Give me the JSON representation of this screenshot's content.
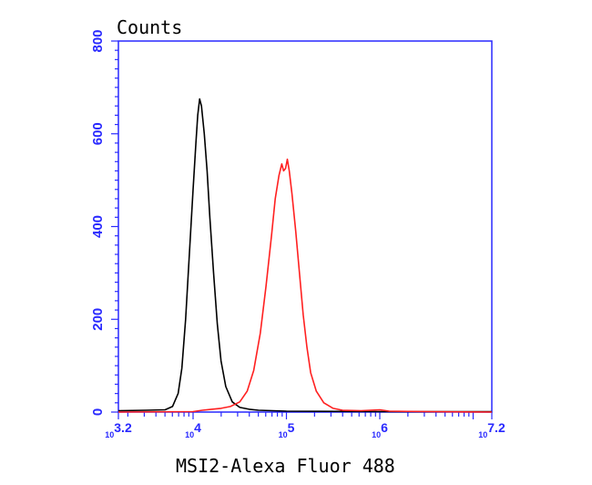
{
  "chart_data": {
    "type": "line",
    "ylabel": "Counts",
    "xlabel": "MSI2-Alexa Fluor 488",
    "x_scale": "log10",
    "xlim_exponent": [
      3.2,
      7.2
    ],
    "ylim": [
      0,
      800
    ],
    "y_ticks": [
      0,
      200,
      400,
      600,
      800
    ],
    "x_ticks": [
      {
        "base": "10",
        "exp": "3.2",
        "value": 3.2
      },
      {
        "base": "10",
        "exp": "4",
        "value": 4
      },
      {
        "base": "10",
        "exp": "5",
        "value": 5
      },
      {
        "base": "10",
        "exp": "6",
        "value": 6
      },
      {
        "base": "10",
        "exp": "7.2",
        "value": 7.2
      }
    ],
    "series": [
      {
        "color": "#000000",
        "points": [
          [
            3.2,
            3
          ],
          [
            3.5,
            4
          ],
          [
            3.7,
            5
          ],
          [
            3.78,
            12
          ],
          [
            3.84,
            40
          ],
          [
            3.88,
            95
          ],
          [
            3.92,
            200
          ],
          [
            3.96,
            340
          ],
          [
            4.0,
            480
          ],
          [
            4.03,
            580
          ],
          [
            4.05,
            640
          ],
          [
            4.07,
            675
          ],
          [
            4.09,
            660
          ],
          [
            4.12,
            600
          ],
          [
            4.15,
            520
          ],
          [
            4.18,
            420
          ],
          [
            4.22,
            300
          ],
          [
            4.26,
            190
          ],
          [
            4.3,
            110
          ],
          [
            4.35,
            55
          ],
          [
            4.42,
            22
          ],
          [
            4.5,
            10
          ],
          [
            4.6,
            6
          ],
          [
            4.7,
            4
          ],
          [
            5.0,
            2
          ],
          [
            6.0,
            1
          ],
          [
            7.2,
            1
          ]
        ]
      },
      {
        "color": "#ff2020",
        "points": [
          [
            3.2,
            0
          ],
          [
            4.0,
            1
          ],
          [
            4.1,
            4
          ],
          [
            4.2,
            6
          ],
          [
            4.3,
            8
          ],
          [
            4.4,
            12
          ],
          [
            4.5,
            22
          ],
          [
            4.58,
            45
          ],
          [
            4.65,
            90
          ],
          [
            4.72,
            170
          ],
          [
            4.78,
            270
          ],
          [
            4.84,
            380
          ],
          [
            4.88,
            460
          ],
          [
            4.92,
            510
          ],
          [
            4.95,
            535
          ],
          [
            4.97,
            520
          ],
          [
            4.99,
            525
          ],
          [
            5.01,
            545
          ],
          [
            5.03,
            520
          ],
          [
            5.06,
            470
          ],
          [
            5.1,
            390
          ],
          [
            5.14,
            300
          ],
          [
            5.18,
            210
          ],
          [
            5.22,
            140
          ],
          [
            5.26,
            85
          ],
          [
            5.32,
            45
          ],
          [
            5.4,
            20
          ],
          [
            5.5,
            8
          ],
          [
            5.6,
            4
          ],
          [
            5.8,
            3
          ],
          [
            6.0,
            5
          ],
          [
            6.1,
            2
          ],
          [
            6.5,
            1
          ],
          [
            7.2,
            0
          ]
        ]
      }
    ],
    "colors": {
      "axis": "#2929ff",
      "text": "#000000",
      "tick_text": "#2929ff"
    }
  }
}
